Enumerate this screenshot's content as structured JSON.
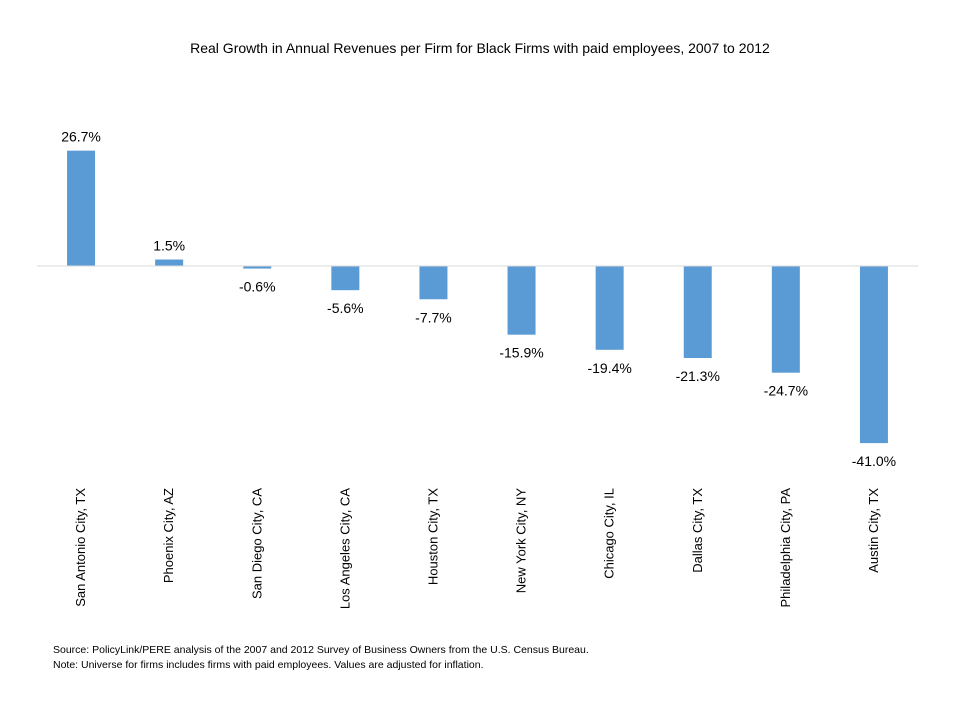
{
  "chart_data": {
    "type": "bar",
    "title": "Real Growth in Annual Revenues per Firm for Black Firms with paid employees, 2007 to 2012",
    "categories": [
      "San Antonio City, TX",
      "Phoenix City, AZ",
      "San Diego City, CA",
      "Los Angeles City, CA",
      "Houston City, TX",
      "New York City, NY",
      "Chicago City, IL",
      "Dallas City, TX",
      "Philadelphia City, PA",
      "Austin City, TX"
    ],
    "values": [
      26.7,
      1.5,
      -0.6,
      -5.6,
      -7.7,
      -15.9,
      -19.4,
      -21.3,
      -24.7,
      -41.0
    ],
    "data_labels": [
      "26.7%",
      "1.5%",
      "-0.6%",
      "-5.6%",
      "-7.7%",
      "-15.9%",
      "-19.4%",
      "-21.3%",
      "-24.7%",
      "-41.0%"
    ],
    "ylim": [
      -41.0,
      26.7
    ],
    "xlabel": "",
    "ylabel": "",
    "grid": false,
    "legend": "none",
    "bar_color": "#5b9bd5",
    "axis_color": "#d9d9d9"
  },
  "notes": {
    "source": "Source: PolicyLink/PERE analysis of the 2007 and 2012 Survey of Business Owners from the U.S. Census Bureau.",
    "note": "Note: Universe for firms includes firms with paid employees. Values are adjusted for inflation."
  }
}
